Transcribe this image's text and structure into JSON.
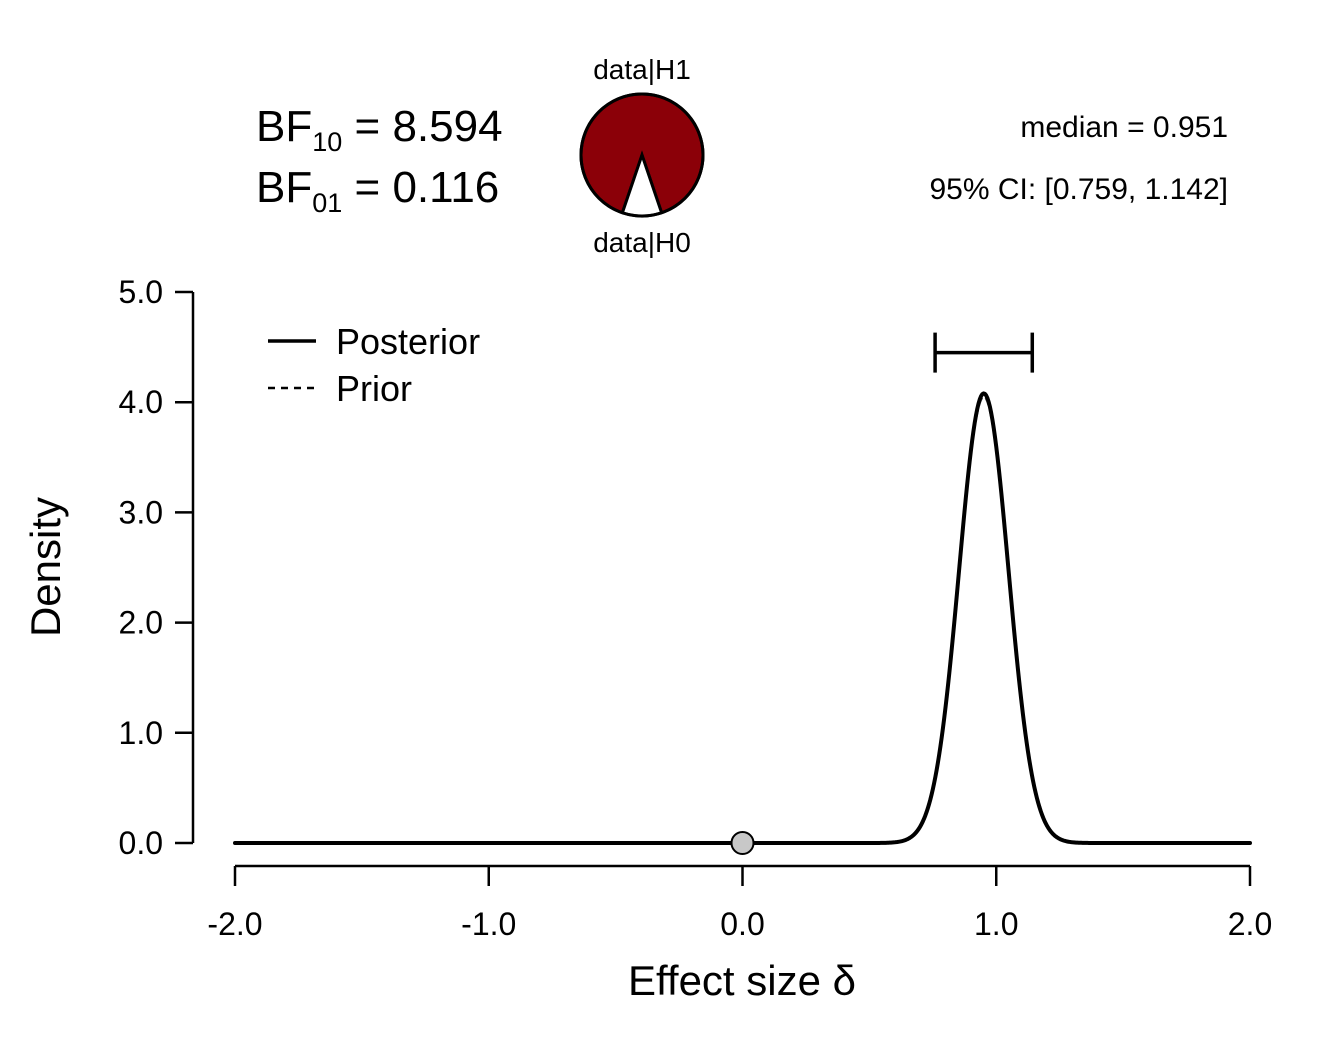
{
  "bayes_factor": {
    "bf10_label": "BF",
    "bf10_sub": "10",
    "bf10_value": "8.594",
    "bf01_label": "BF",
    "bf01_sub": "01",
    "bf01_value": "0.116"
  },
  "pie": {
    "top_label": "data|H1",
    "bottom_label": "data|H0",
    "h1_share": 0.8958,
    "h1_color": "#8B0008",
    "h0_color": "#ffffff"
  },
  "summary": {
    "median_text": "median = 0.951",
    "ci_text": "95% CI: [0.759, 1.142]"
  },
  "chart_data": {
    "type": "line",
    "title": "",
    "xlabel": "Effect size δ",
    "ylabel": "Density",
    "xlim": [
      -2.0,
      2.0
    ],
    "ylim": [
      0.0,
      5.0
    ],
    "x_ticks": [
      "-2.0",
      "-1.0",
      "0.0",
      "1.0",
      "2.0"
    ],
    "y_ticks": [
      "0.0",
      "1.0",
      "2.0",
      "3.0",
      "4.0",
      "5.0"
    ],
    "legend_position": "top-left",
    "series": [
      {
        "name": "Posterior",
        "style": "solid",
        "distribution": "normal",
        "mean": 0.951,
        "sd": 0.0975,
        "peak": 4.08
      },
      {
        "name": "Prior",
        "style": "dashed",
        "distribution": "normal",
        "mean": 0.951,
        "sd": 0.0975,
        "peak": 4.05
      }
    ],
    "credible_interval": {
      "lower": 0.759,
      "upper": 1.142,
      "y": 4.45
    },
    "null_point": {
      "x": 0.0,
      "y": 0.0,
      "color": "#c8c8c8"
    }
  }
}
